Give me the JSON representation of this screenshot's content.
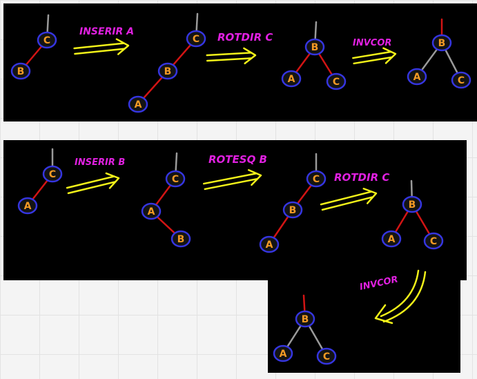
{
  "colors": {
    "background": "#000000",
    "node_fill": "#141414",
    "node_stroke": "#3535e0",
    "node_text": "#f39a24",
    "edge_red": "#d21414",
    "edge_gray": "#9a9a9a",
    "arrow": "#f2f219",
    "label": "#e020e0"
  },
  "labels": {
    "insert_a": "INSERIR A",
    "rotate_right_c_1": "ROTDIR C",
    "recolor_1": "INVCOR",
    "insert_b": "INSERIR B",
    "rotate_left_b": "ROTESQ B",
    "rotate_right_c_2": "ROTDIR C",
    "recolor_2": "INVCOR"
  },
  "nodes": {
    "a": "A",
    "b": "B",
    "c": "C"
  }
}
